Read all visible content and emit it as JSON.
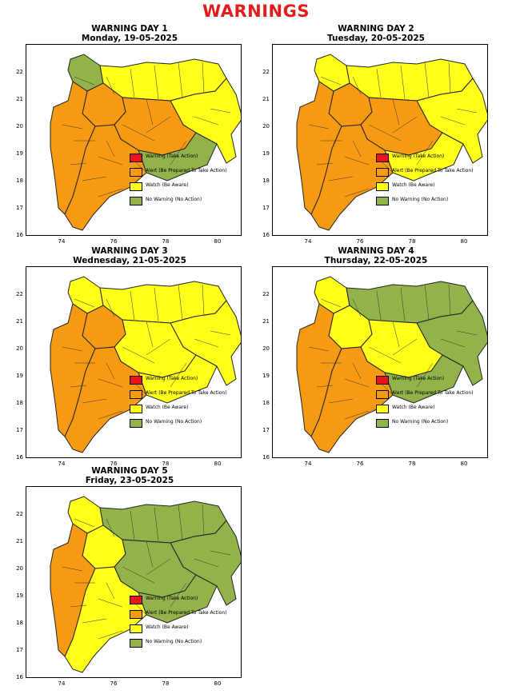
{
  "title": "WARNINGS",
  "axes": {
    "x_ticks": [
      "74",
      "76",
      "78",
      "80"
    ],
    "y_ticks": [
      "22",
      "21",
      "20",
      "19",
      "18",
      "17",
      "16"
    ]
  },
  "legend": [
    {
      "label": "Warning (Take Action)",
      "color": "#e8141c"
    },
    {
      "label": "Alert (Be Prepared To Take Action)",
      "color": "#f59a12"
    },
    {
      "label": "Watch (Be Aware)",
      "color": "#ffff1a"
    },
    {
      "label": "No Warning (No Action)",
      "color": "#92b24a"
    }
  ],
  "panels": [
    {
      "title": "WARNING DAY 1",
      "subtitle": "Monday, 19-05-2025",
      "zones": {
        "west": "alert",
        "central_w": "alert",
        "central": "alert",
        "north_w": "green",
        "south": "alert",
        "north_e": "watch",
        "east": "watch",
        "south_e": "green"
      }
    },
    {
      "title": "WARNING DAY 2",
      "subtitle": "Tuesday, 20-05-2025",
      "zones": {
        "west": "alert",
        "central_w": "alert",
        "central": "alert",
        "north_w": "watch",
        "south": "alert",
        "north_e": "watch",
        "east": "watch",
        "south_e": "watch"
      }
    },
    {
      "title": "WARNING DAY 3",
      "subtitle": "Wednesday, 21-05-2025",
      "zones": {
        "west": "alert",
        "central_w": "alert",
        "central": "watch",
        "north_w": "watch",
        "south": "alert",
        "north_e": "watch",
        "east": "watch",
        "south_e": "watch"
      }
    },
    {
      "title": "WARNING DAY 4",
      "subtitle": "Thursday, 22-05-2025",
      "zones": {
        "west": "alert",
        "central_w": "watch",
        "central": "watch",
        "north_w": "watch",
        "south": "alert",
        "north_e": "green",
        "east": "green",
        "south_e": "green"
      }
    },
    {
      "title": "WARNING DAY 5",
      "subtitle": "Friday, 23-05-2025",
      "zones": {
        "west": "alert",
        "central_w": "watch",
        "central": "green",
        "north_w": "watch",
        "south": "watch",
        "north_e": "green",
        "east": "green",
        "south_e": "green"
      }
    }
  ]
}
